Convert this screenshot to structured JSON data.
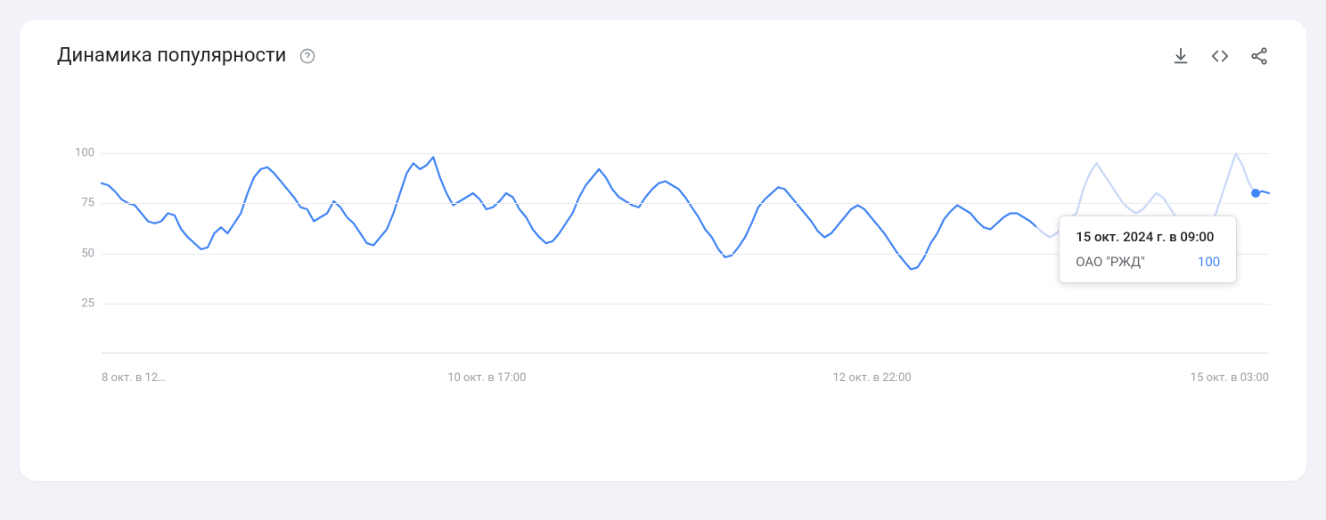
{
  "card": {
    "title": "Динамика популярности",
    "background_color": "#ffffff",
    "page_background": "#f1f3f8",
    "border_radius": 18
  },
  "icons": {
    "help": "help-icon",
    "download": "download-icon",
    "embed": "embed-icon",
    "share": "share-icon",
    "icon_color": "#5f6368"
  },
  "chart": {
    "type": "line",
    "line_color": "#4285f4",
    "line_color_dimmed": "#c7d7f7",
    "line_width": 2.2,
    "marker_color": "#4285f4",
    "marker_radius": 5,
    "grid_color": "#e8eaed",
    "baseline_color": "#dadce0",
    "background_color": "#ffffff",
    "tick_color": "#9aa0a6",
    "tick_fontsize": 13,
    "ylim": [
      0,
      100
    ],
    "yticks": [
      25,
      50,
      75,
      100
    ],
    "xticks": [
      {
        "pos": 0.0,
        "label": "8 окт. в 12…"
      },
      {
        "pos": 0.33,
        "label": "10 окт. в 17:00"
      },
      {
        "pos": 0.66,
        "label": "12 окт. в 22:00"
      },
      {
        "pos": 0.99,
        "label": "15 окт. в 03:00"
      }
    ],
    "dimmed_range": [
      0.8,
      0.987
    ],
    "highlight_x": 0.987,
    "series": {
      "name": "ОАО \"РЖД\"",
      "values": [
        85,
        84,
        81,
        77,
        75,
        74,
        70,
        66,
        65,
        66,
        70,
        69,
        62,
        58,
        55,
        52,
        53,
        60,
        63,
        60,
        65,
        70,
        80,
        88,
        92,
        93,
        90,
        86,
        82,
        78,
        73,
        72,
        66,
        68,
        70,
        76,
        73,
        68,
        65,
        60,
        55,
        54,
        58,
        62,
        70,
        80,
        90,
        95,
        92,
        94,
        98,
        88,
        80,
        74,
        76,
        78,
        80,
        77,
        72,
        73,
        76,
        80,
        78,
        72,
        68,
        62,
        58,
        55,
        56,
        60,
        65,
        70,
        78,
        84,
        88,
        92,
        88,
        82,
        78,
        76,
        74,
        73,
        78,
        82,
        85,
        86,
        84,
        82,
        78,
        73,
        68,
        62,
        58,
        52,
        48,
        49,
        53,
        58,
        65,
        73,
        77,
        80,
        83,
        82,
        78,
        74,
        70,
        66,
        61,
        58,
        60,
        64,
        68,
        72,
        74,
        72,
        68,
        64,
        60,
        55,
        50,
        46,
        42,
        43,
        48,
        55,
        60,
        67,
        71,
        74,
        72,
        70,
        66,
        63,
        62,
        65,
        68,
        70,
        70,
        68,
        66,
        63,
        60,
        58,
        60,
        64,
        68,
        70,
        82,
        90,
        95,
        90,
        85,
        80,
        75,
        72,
        70,
        72,
        76,
        80,
        78,
        73,
        68,
        62,
        56,
        53,
        55,
        62,
        70,
        80,
        90,
        100,
        94,
        85,
        80,
        81,
        80
      ]
    },
    "tooltip": {
      "title": "15 окт. 2024 г. в 09:00",
      "series_label": "ОАО \"РЖД\"",
      "value": "100",
      "title_color": "#202124",
      "series_color": "#5f6368",
      "value_color": "#4285f4",
      "background": "#ffffff",
      "border_color": "#dadce0",
      "x_anchor": 0.82,
      "y_anchor": 0.31
    }
  }
}
